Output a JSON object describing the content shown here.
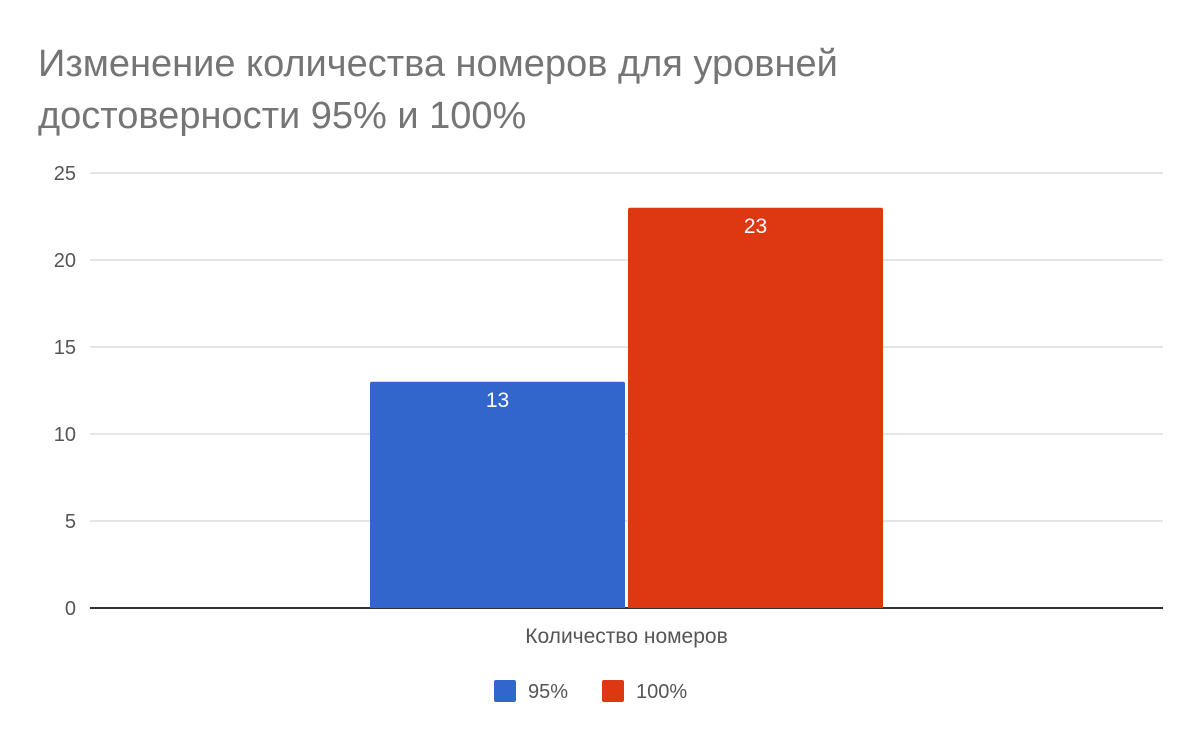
{
  "chart_data": {
    "type": "bar",
    "title": "Изменение количества номеров для уровней достоверности 95% и 100%",
    "categories": [
      "Количество номеров"
    ],
    "series": [
      {
        "name": "95%",
        "values": [
          13
        ],
        "color": "#3366cc"
      },
      {
        "name": "100%",
        "values": [
          23
        ],
        "color": "#dc3912"
      }
    ],
    "ylim": [
      0,
      25
    ],
    "yticks": [
      0,
      5,
      10,
      15,
      20,
      25
    ],
    "xlabel": "",
    "ylabel": "",
    "grid": true,
    "legend_position": "bottom",
    "data_labels": true
  }
}
